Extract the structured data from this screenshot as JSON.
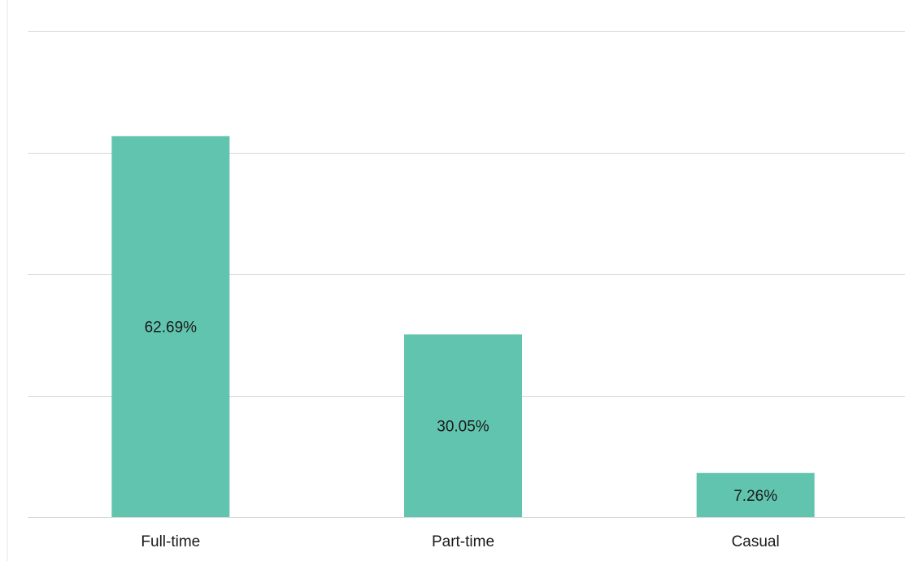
{
  "chart_data": {
    "type": "bar",
    "categories": [
      "Full-time",
      "Part-time",
      "Casual"
    ],
    "values": [
      62.69,
      30.05,
      7.26
    ],
    "data_labels": [
      "62.69%",
      "30.05%",
      "7.26%"
    ],
    "unit": "%",
    "ylim": [
      0,
      80
    ],
    "gridlines": [
      0,
      20,
      40,
      60,
      80
    ],
    "grid": true,
    "bar_color": "#61c4ae",
    "title": "",
    "xlabel": "",
    "ylabel": ""
  }
}
